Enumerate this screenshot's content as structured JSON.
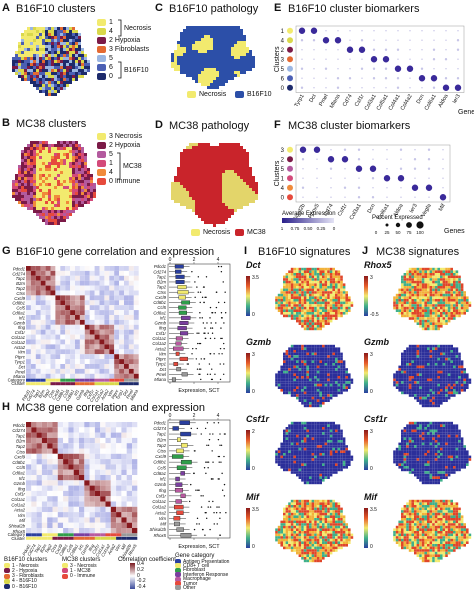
{
  "panels": {
    "A": {
      "letter": "A",
      "title": "B16F10 clusters",
      "legend": [
        {
          "id": "1",
          "label": "1",
          "color": "#f2ea6e"
        },
        {
          "id": "4",
          "label": "4",
          "color": "#d9d84a"
        },
        {
          "id": "2",
          "label": "2 Hypoxia",
          "color": "#7b1a47"
        },
        {
          "id": "3",
          "label": "3 Fibroblasts",
          "color": "#e46a32"
        },
        {
          "id": "5",
          "label": "5",
          "color": "#9bb6e2"
        },
        {
          "id": "6",
          "label": "6",
          "color": "#4b5fb4"
        },
        {
          "id": "0",
          "label": "0",
          "color": "#1d2a6b"
        }
      ],
      "brace_labels": {
        "necrosis": "Necrosis",
        "b16f10": "B16F10"
      }
    },
    "B": {
      "letter": "B",
      "title": "MC38 clusters",
      "legend": [
        {
          "id": "3",
          "label": "3 Necrosis",
          "color": "#f2ea6e"
        },
        {
          "id": "2",
          "label": "2 Hypoxia",
          "color": "#7b1a47"
        },
        {
          "id": "5",
          "label": "5",
          "color": "#b35a9e"
        },
        {
          "id": "1",
          "label": "1",
          "color": "#d34a7a"
        },
        {
          "id": "4",
          "label": "4",
          "color": "#f08a3a"
        },
        {
          "id": "0",
          "label": "0 Immune",
          "color": "#e64a3c"
        }
      ],
      "brace_labels": {
        "mc38": "MC38"
      }
    },
    "C": {
      "letter": "C",
      "title": "B16F10 pathology",
      "legend": [
        {
          "label": "Necrosis",
          "color": "#f2ea6e"
        },
        {
          "label": "B16F10",
          "color": "#2c4fa8"
        }
      ]
    },
    "D": {
      "letter": "D",
      "title": "MC38 pathology",
      "legend": [
        {
          "label": "Necrosis",
          "color": "#f2ea6e"
        },
        {
          "label": "MC38",
          "color": "#c9242b"
        }
      ]
    },
    "E": {
      "letter": "E",
      "title": "B16F10 cluster biomarkers",
      "ylabel": "Clusters",
      "xlabel": "Genes",
      "clusters": [
        "1",
        "4",
        "2",
        "3",
        "5",
        "6",
        "0"
      ],
      "genes": [
        "Tyrp1",
        "Dct",
        "Pmel",
        "Mlana",
        "Cd74",
        "Csf1r",
        "Col3a1",
        "Col5a1",
        "Col4a1",
        "Col4a2",
        "Dcn",
        "Col6a1",
        "Aldoa",
        "Ier3"
      ],
      "cluster_colors": [
        "#f2ea6e",
        "#d9d84a",
        "#7b1a47",
        "#e46a32",
        "#9bb6e2",
        "#4b5fb4",
        "#1d2a6b"
      ]
    },
    "F": {
      "letter": "F",
      "title": "MC38 cluster biomarkers",
      "ylabel": "Clusters",
      "xlabel": "Genes",
      "clusters": [
        "3",
        "2",
        "5",
        "1",
        "4",
        "0"
      ],
      "genes": [
        "Shisal2b",
        "Rhox5",
        "Cd74",
        "Csf1r",
        "Col3a1",
        "Dcn",
        "Col6a1",
        "Aldoa",
        "Ier3",
        "Vegfa",
        "Mif"
      ],
      "cluster_colors": [
        "#f2ea6e",
        "#7b1a47",
        "#b35a9e",
        "#d34a7a",
        "#f08a3a",
        "#e64a3c"
      ],
      "avg_expr_title": "Average Expression",
      "avg_expr_ticks": [
        "1",
        "0.75",
        "0.50",
        "0.25",
        "0"
      ],
      "pct_title": "Percent Expressed",
      "pct_ticks": [
        "0",
        "25",
        "50",
        "75",
        "100"
      ]
    },
    "G": {
      "letter": "G",
      "title": "B16F10 gene correlation and expression",
      "genes": [
        "Pdcd1",
        "Cd274",
        "Tap1",
        "B2m",
        "Tap2",
        "Ctss",
        "Cxcl9",
        "Cd8b1",
        "Ccl5",
        "Cd8a1",
        "Irf1",
        "Gzmb",
        "Ifng",
        "Csf1r",
        "Col1a1",
        "Col1a2",
        "Acta2",
        "Vim",
        "Ptprc",
        "Tyrp1",
        "Dct",
        "Pmel",
        "Mlana"
      ],
      "box_xticks": [
        "0",
        "2",
        "4"
      ],
      "box_xlabel": "Expression, SCT",
      "row_labels": [
        "Category",
        "Cluster"
      ]
    },
    "H": {
      "letter": "H",
      "title": "MC38 gene correlation and expression",
      "genes": [
        "Pdcd1",
        "Cd274",
        "Tap1",
        "B2m",
        "Tap2",
        "Ctss",
        "Cxcl9",
        "Cd8b1",
        "Ccl5",
        "Cd8a1",
        "Irf1",
        "Gzmb",
        "Ifng",
        "Csf1r",
        "Col1a1",
        "Col1a2",
        "Acta2",
        "Vim",
        "Mif",
        "Shisal2b",
        "Rhox5"
      ],
      "box_xticks": [
        "0",
        "2",
        "4"
      ],
      "box_xlabel": "Expression, SCT",
      "row_labels": [
        "Category",
        "Cluster"
      ]
    },
    "I": {
      "letter": "I",
      "title": "B16F10 signatures",
      "maps": [
        {
          "gene": "Dct",
          "tmax": "3.5",
          "tmin": "0"
        },
        {
          "gene": "Gzmb",
          "tmax": "3",
          "tmin": "0"
        },
        {
          "gene": "Csf1r",
          "tmax": "2",
          "tmin": "0"
        },
        {
          "gene": "Mif",
          "tmax": "3.5",
          "tmin": "0"
        }
      ]
    },
    "J": {
      "letter": "J",
      "title": "MC38 signatures",
      "maps": [
        {
          "gene": "Rhox5",
          "tmax": "3",
          "tmin": "-0.5"
        },
        {
          "gene": "Gzmb",
          "tmax": "3",
          "tmin": "0"
        },
        {
          "gene": "Csf1r",
          "tmax": "3",
          "tmin": "0"
        },
        {
          "gene": "Mif",
          "tmax": "3.5",
          "tmin": "0"
        }
      ]
    }
  },
  "bottom_legend": {
    "b16_title": "B16F10 clusters",
    "b16_items": [
      {
        "label": "1 - Necrosis",
        "color": "#f2ea6e"
      },
      {
        "label": "2 - Hypoxia",
        "color": "#7b1a47"
      },
      {
        "label": "3 - Fibroblasts",
        "color": "#e46a32"
      },
      {
        "label": "4 - B16F10",
        "color": "#d9d84a"
      },
      {
        "label": "0 - B16F10",
        "color": "#1d2a6b"
      }
    ],
    "mc_title": "MC38 clusters",
    "mc_items": [
      {
        "label": "3 - Necrosis",
        "color": "#f2ea6e"
      },
      {
        "label": "1 - MC38",
        "color": "#d34a7a"
      },
      {
        "label": "0 - Immune",
        "color": "#e64a3c"
      }
    ],
    "corr_title": "Correlation coefficient",
    "corr_ticks": [
      "0.4",
      "0.2",
      "0",
      "-0.2",
      "-0.4"
    ],
    "cat_title": "Gene category",
    "cat_items": [
      {
        "label": "Antigen Presentation",
        "color": "#2a3fa0"
      },
      {
        "label": "CD8+ T cell",
        "color": "#f2ea6e"
      },
      {
        "label": "Fibroblast",
        "color": "#2f9e4a"
      },
      {
        "label": "Interferon Response",
        "color": "#7b3fa0"
      },
      {
        "label": "Macrophage",
        "color": "#b85aa0"
      },
      {
        "label": "Tumor",
        "color": "#e64a3c"
      },
      {
        "label": "Other",
        "color": "#999999"
      }
    ]
  }
}
